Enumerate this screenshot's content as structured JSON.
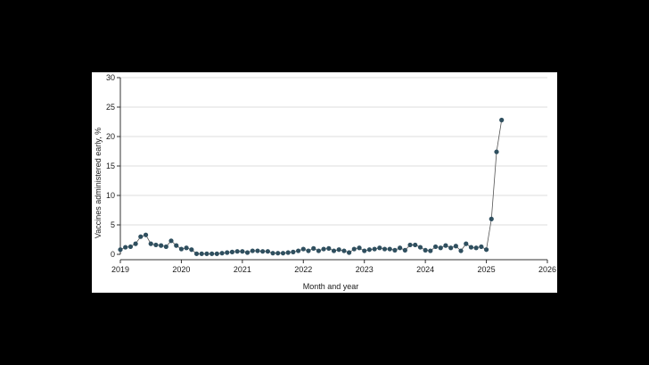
{
  "chart_data": {
    "type": "line",
    "title": "",
    "xlabel": "Month and year",
    "ylabel": "Vaccines administered early, %",
    "xlim": [
      2019,
      2026
    ],
    "ylim": [
      0,
      30
    ],
    "x_ticks": [
      2019,
      2020,
      2021,
      2022,
      2023,
      2024,
      2025,
      2026
    ],
    "x_tick_labels": [
      "2019",
      "2020",
      "2021",
      "2022",
      "2023",
      "2024",
      "2025",
      "2026"
    ],
    "y_ticks": [
      0,
      5,
      10,
      15,
      20,
      25,
      30
    ],
    "y_tick_labels": [
      "0",
      "5",
      "10",
      "15",
      "20",
      "25",
      "30"
    ],
    "grid": "horizontal",
    "legend": "none",
    "colors": {
      "marker": "#2f4f5f",
      "line": "#555555",
      "grid": "#dddddd",
      "axis": "#333333"
    },
    "series": [
      {
        "x": [
          2019.0,
          2019.083,
          2019.167,
          2019.25,
          2019.333,
          2019.417,
          2019.5,
          2019.583,
          2019.667,
          2019.75,
          2019.833,
          2019.917,
          2020.0,
          2020.083,
          2020.167,
          2020.25,
          2020.333,
          2020.417,
          2020.5,
          2020.583,
          2020.667,
          2020.75,
          2020.833,
          2020.917,
          2021.0,
          2021.083,
          2021.167,
          2021.25,
          2021.333,
          2021.417,
          2021.5,
          2021.583,
          2021.667,
          2021.75,
          2021.833,
          2021.917,
          2022.0,
          2022.083,
          2022.167,
          2022.25,
          2022.333,
          2022.417,
          2022.5,
          2022.583,
          2022.667,
          2022.75,
          2022.833,
          2022.917,
          2023.0,
          2023.083,
          2023.167,
          2023.25,
          2023.333,
          2023.417,
          2023.5,
          2023.583,
          2023.667,
          2023.75,
          2023.833,
          2023.917,
          2024.0,
          2024.083,
          2024.167,
          2024.25,
          2024.333,
          2024.417,
          2024.5,
          2024.583,
          2024.667,
          2024.75,
          2024.833,
          2024.917,
          2025.0,
          2025.083,
          2025.167,
          2025.25
        ],
        "values": [
          0.8,
          1.2,
          1.3,
          1.8,
          3.0,
          3.3,
          1.8,
          1.6,
          1.5,
          1.3,
          2.3,
          1.5,
          0.9,
          1.1,
          0.8,
          0.1,
          0.1,
          0.1,
          0.1,
          0.1,
          0.2,
          0.3,
          0.4,
          0.5,
          0.5,
          0.3,
          0.6,
          0.6,
          0.5,
          0.5,
          0.2,
          0.2,
          0.2,
          0.3,
          0.4,
          0.6,
          0.9,
          0.6,
          1.0,
          0.6,
          0.9,
          1.0,
          0.6,
          0.8,
          0.6,
          0.3,
          0.9,
          1.1,
          0.6,
          0.8,
          0.9,
          1.1,
          0.9,
          0.9,
          0.7,
          1.1,
          0.7,
          1.6,
          1.6,
          1.2,
          0.7,
          0.6,
          1.3,
          1.1,
          1.5,
          1.1,
          1.4,
          0.6,
          1.8,
          1.2,
          1.1,
          1.3,
          0.8,
          6.0,
          17.4,
          22.8
        ]
      }
    ]
  }
}
